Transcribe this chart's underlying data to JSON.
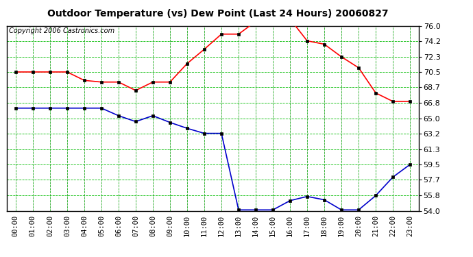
{
  "title": "Outdoor Temperature (vs) Dew Point (Last 24 Hours) 20060827",
  "copyright": "Copyright 2006 Castronics.com",
  "x_labels": [
    "00:00",
    "01:00",
    "02:00",
    "03:00",
    "04:00",
    "05:00",
    "06:00",
    "07:00",
    "08:00",
    "09:00",
    "10:00",
    "11:00",
    "12:00",
    "13:00",
    "14:00",
    "15:00",
    "16:00",
    "17:00",
    "18:00",
    "19:00",
    "20:00",
    "21:00",
    "22:00",
    "23:00"
  ],
  "y_ticks": [
    54.0,
    55.8,
    57.7,
    59.5,
    61.3,
    63.2,
    65.0,
    66.8,
    68.7,
    70.5,
    72.3,
    74.2,
    76.0
  ],
  "y_min": 54.0,
  "y_max": 76.0,
  "temp_data": [
    70.5,
    70.5,
    70.5,
    70.5,
    69.5,
    69.3,
    69.3,
    68.3,
    69.3,
    69.3,
    71.5,
    73.2,
    75.0,
    75.0,
    76.5,
    76.8,
    76.8,
    74.2,
    73.8,
    72.3,
    71.0,
    68.0,
    67.0,
    67.0
  ],
  "dew_data": [
    66.2,
    66.2,
    66.2,
    66.2,
    66.2,
    66.2,
    65.3,
    64.6,
    65.3,
    64.5,
    63.8,
    63.2,
    63.2,
    54.1,
    54.1,
    54.1,
    55.2,
    55.7,
    55.3,
    54.1,
    54.1,
    55.8,
    58.0,
    59.5
  ],
  "temp_color": "#ff0000",
  "dew_color": "#0000cc",
  "bg_color": "#ffffff",
  "plot_bg_color": "#ffffff",
  "grid_color": "#00bb00",
  "title_fontsize": 10,
  "copyright_fontsize": 7,
  "marker_color": "#000000"
}
